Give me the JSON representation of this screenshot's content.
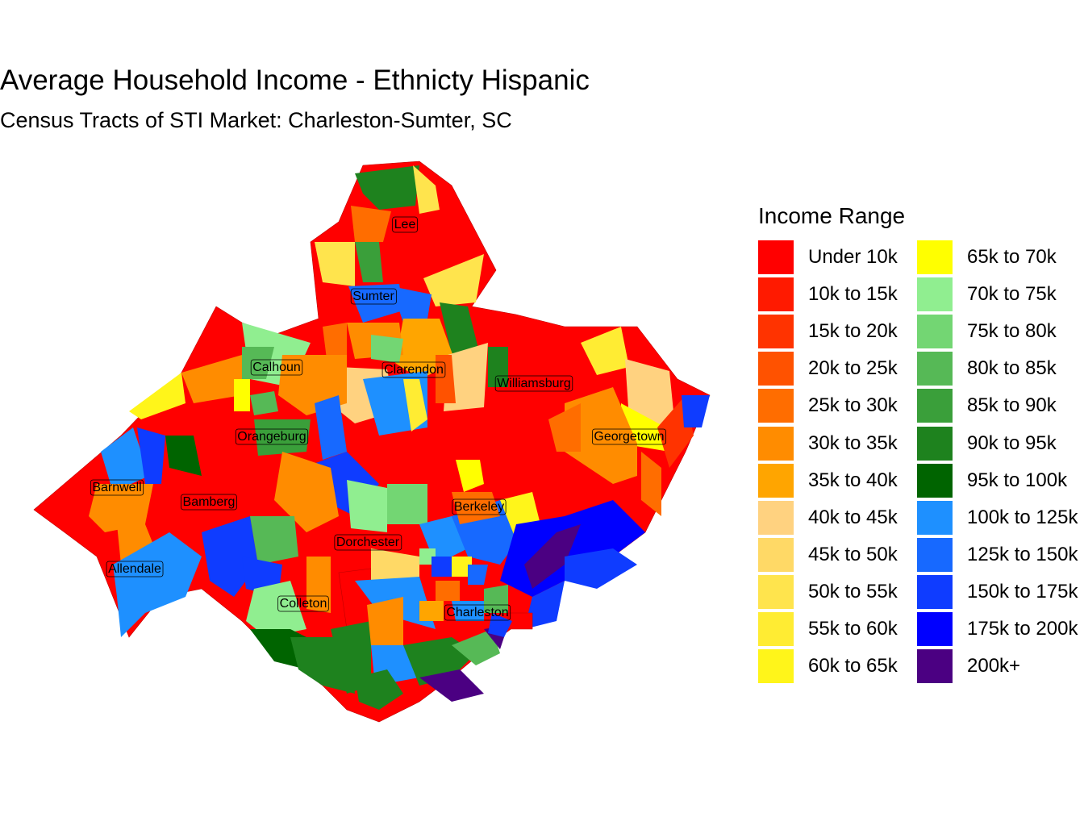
{
  "title": "Average Household Income - Ethnicty Hispanic",
  "subtitle": "Census Tracts of STI Market: Charleston-Sumter, SC",
  "legend": {
    "title": "Income Range",
    "items": [
      {
        "label": "Under 10k",
        "color": "#ff0000"
      },
      {
        "label": "10k to 15k",
        "color": "#ff1a00"
      },
      {
        "label": "15k to 20k",
        "color": "#ff3300"
      },
      {
        "label": "20k to 25k",
        "color": "#ff5200"
      },
      {
        "label": "25k to 30k",
        "color": "#ff6d00"
      },
      {
        "label": "30k to 35k",
        "color": "#ff8c00"
      },
      {
        "label": "35k to 40k",
        "color": "#ffa500"
      },
      {
        "label": "40k to 45k",
        "color": "#ffd280"
      },
      {
        "label": "45k to 50k",
        "color": "#ffd966"
      },
      {
        "label": "50k to 55k",
        "color": "#ffe44d"
      },
      {
        "label": "55k to 60k",
        "color": "#ffec33"
      },
      {
        "label": "60k to 65k",
        "color": "#fff51a"
      },
      {
        "label": "65k to 70k",
        "color": "#ffff00"
      },
      {
        "label": "70k to 75k",
        "color": "#90ee90"
      },
      {
        "label": "75k to 80k",
        "color": "#73d673"
      },
      {
        "label": "80k to 85k",
        "color": "#56b956"
      },
      {
        "label": "85k to 90k",
        "color": "#3a9f3a"
      },
      {
        "label": "90k to 95k",
        "color": "#1e821e"
      },
      {
        "label": "95k to 100k",
        "color": "#006400"
      },
      {
        "label": "100k to 125k",
        "color": "#1e90ff"
      },
      {
        "label": "125k to 150k",
        "color": "#1769ff"
      },
      {
        "label": "150k to 175k",
        "color": "#0f3cff"
      },
      {
        "label": "175k to 200k",
        "color": "#0000ff"
      },
      {
        "label": "200k+",
        "color": "#4b0082"
      }
    ]
  },
  "counties": [
    "Lee",
    "Sumter",
    "Calhoun",
    "Clarendon",
    "Williamsburg",
    "Orangeburg",
    "Georgetown",
    "Barnwell",
    "Bamberg",
    "Berkeley",
    "Dorchester",
    "Allendale",
    "Colleton",
    "Charleston"
  ]
}
